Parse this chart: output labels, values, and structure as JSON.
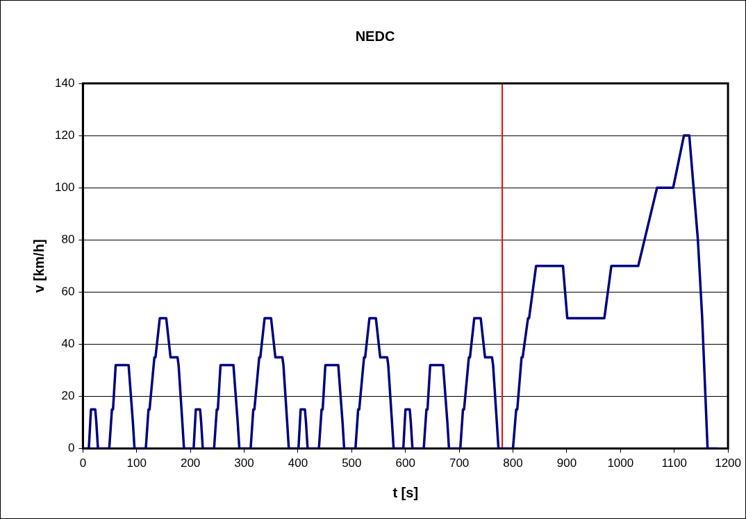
{
  "chart_data": {
    "type": "line",
    "title": "NEDC",
    "xlabel": "t [s]",
    "ylabel": "v [km/h]",
    "xlim": [
      0,
      1200
    ],
    "xticks": [
      0,
      100,
      200,
      300,
      400,
      500,
      600,
      700,
      800,
      900,
      1000,
      1100,
      1200
    ],
    "ylim": [
      0,
      140
    ],
    "yticks": [
      0,
      20,
      40,
      60,
      80,
      100,
      120,
      140
    ],
    "grid": "y",
    "legend": false,
    "marker": "none",
    "line_style": "solid",
    "ref_lines": [
      {
        "axis": "x",
        "value": 780,
        "color": "#ff0000"
      }
    ],
    "series": [
      {
        "color": "#000080",
        "x": [
          0,
          11,
          15,
          23,
          25,
          28,
          49,
          54,
          56,
          61,
          85,
          93,
          96,
          117,
          122,
          124,
          133,
          135,
          143,
          155,
          163,
          176,
          178,
          185,
          188,
          195,
          206,
          210,
          218,
          220,
          223,
          244,
          249,
          251,
          256,
          280,
          288,
          291,
          312,
          317,
          319,
          328,
          330,
          338,
          350,
          358,
          371,
          373,
          380,
          383,
          390,
          401,
          405,
          413,
          415,
          418,
          439,
          444,
          446,
          451,
          475,
          483,
          486,
          507,
          512,
          514,
          523,
          525,
          533,
          545,
          553,
          566,
          568,
          575,
          578,
          585,
          596,
          600,
          608,
          610,
          613,
          634,
          639,
          641,
          646,
          670,
          678,
          681,
          702,
          707,
          709,
          718,
          720,
          728,
          740,
          748,
          761,
          763,
          770,
          773,
          780,
          800,
          806,
          808,
          816,
          818,
          828,
          830,
          843,
          893,
          901,
          970,
          983,
          1033,
          1068,
          1098,
          1118,
          1128,
          1144,
          1152,
          1162,
          1180
        ],
        "values": [
          0,
          0,
          15,
          15,
          10,
          0,
          0,
          15,
          15,
          32,
          32,
          10,
          0,
          0,
          15,
          15,
          35,
          35,
          50,
          50,
          35,
          35,
          32,
          10,
          0,
          0,
          0,
          15,
          15,
          10,
          0,
          0,
          15,
          15,
          32,
          32,
          10,
          0,
          0,
          15,
          15,
          35,
          35,
          50,
          50,
          35,
          35,
          32,
          10,
          0,
          0,
          0,
          15,
          15,
          10,
          0,
          0,
          15,
          15,
          32,
          32,
          10,
          0,
          0,
          15,
          15,
          35,
          35,
          50,
          50,
          35,
          35,
          32,
          10,
          0,
          0,
          0,
          15,
          15,
          10,
          0,
          0,
          15,
          15,
          32,
          32,
          10,
          0,
          0,
          15,
          15,
          35,
          35,
          50,
          50,
          35,
          35,
          32,
          10,
          0,
          0,
          0,
          15,
          15,
          35,
          35,
          50,
          50,
          70,
          70,
          50,
          50,
          70,
          70,
          100,
          100,
          120,
          120,
          80,
          50,
          0,
          0
        ]
      }
    ]
  }
}
